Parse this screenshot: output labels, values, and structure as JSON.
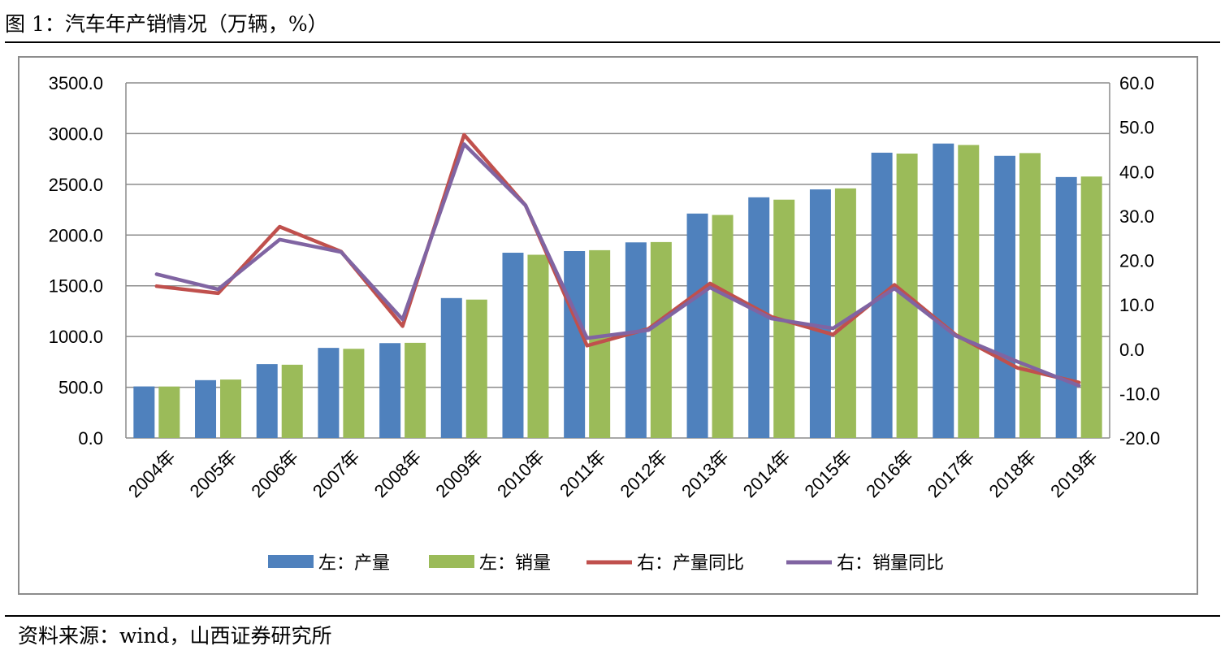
{
  "figure": {
    "title": "图 1：汽车年产销情况（万辆，%）",
    "source": "资料来源：wind，山西证券研究所"
  },
  "chart_data": {
    "type": "bar",
    "title": "",
    "categories": [
      "2004年",
      "2005年",
      "2006年",
      "2007年",
      "2008年",
      "2009年",
      "2010年",
      "2011年",
      "2012年",
      "2013年",
      "2014年",
      "2015年",
      "2016年",
      "2017年",
      "2018年",
      "2019年"
    ],
    "y_left": {
      "ylim": [
        0,
        3500
      ],
      "ticks": [
        "0.0",
        "500.0",
        "1000.0",
        "1500.0",
        "2000.0",
        "2500.0",
        "3000.0",
        "3500.0"
      ]
    },
    "y_right": {
      "ylim": [
        -20,
        60
      ],
      "ticks": [
        "-20.0",
        "-10.0",
        "0.0",
        "10.0",
        "20.0",
        "30.0",
        "40.0",
        "50.0",
        "60.0"
      ]
    },
    "grid": true,
    "legend_position": "bottom",
    "series": [
      {
        "name": "左：产量",
        "kind": "bar",
        "axis": "left",
        "color": "#4f81bd",
        "values": [
          508,
          570,
          728,
          888,
          935,
          1379,
          1826,
          1842,
          1928,
          2212,
          2372,
          2450,
          2812,
          2902,
          2781,
          2572
        ]
      },
      {
        "name": "左：销量",
        "kind": "bar",
        "axis": "left",
        "color": "#9bbb59",
        "values": [
          507,
          576,
          722,
          879,
          938,
          1364,
          1806,
          1851,
          1931,
          2198,
          2349,
          2460,
          2803,
          2888,
          2808,
          2577
        ]
      },
      {
        "name": "右：产量同比",
        "kind": "line",
        "axis": "right",
        "color": "#c0504d",
        "values": [
          14.2,
          12.6,
          27.6,
          22.0,
          5.2,
          48.3,
          32.4,
          0.8,
          4.6,
          14.8,
          7.3,
          3.3,
          14.5,
          3.2,
          -4.2,
          -7.5
        ]
      },
      {
        "name": "右：销量同比",
        "kind": "line",
        "axis": "right",
        "color": "#8064a2",
        "values": [
          16.9,
          13.5,
          24.7,
          21.9,
          6.7,
          46.2,
          32.4,
          2.5,
          4.3,
          13.9,
          6.9,
          4.7,
          13.7,
          3.0,
          -2.8,
          -8.2
        ]
      }
    ]
  }
}
